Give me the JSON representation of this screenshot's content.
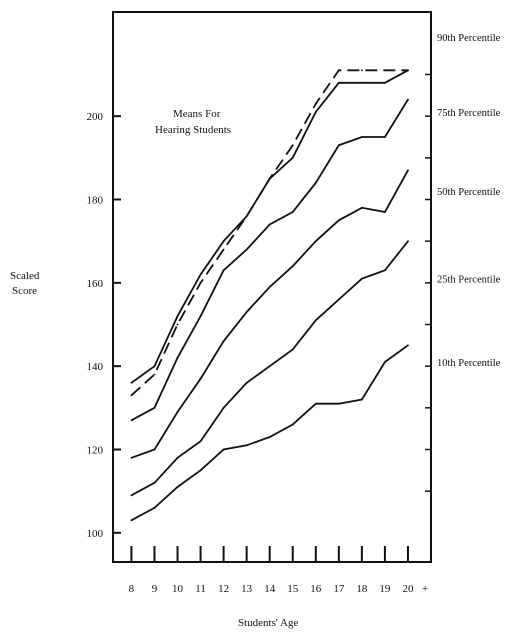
{
  "chart_data": {
    "type": "line",
    "xlabel": "Students' Age",
    "ylabel_line1": "Scaled",
    "ylabel_line2": "Score",
    "x_ticks": [
      "8",
      "9",
      "10",
      "11",
      "12",
      "13",
      "14",
      "15",
      "16",
      "17",
      "18",
      "19",
      "20"
    ],
    "x": [
      8,
      9,
      10,
      11,
      12,
      13,
      14,
      15,
      16,
      17,
      18,
      19,
      20
    ],
    "y_ticks": [
      100,
      120,
      140,
      160,
      180,
      200
    ],
    "y_tick_labels": [
      "100",
      "120",
      "140",
      "160",
      "180",
      "200"
    ],
    "ylim": [
      93,
      225
    ],
    "xlim": [
      7.2,
      21.0
    ],
    "grid": false,
    "annotation_line1": "Means For",
    "annotation_line2": "Hearing Students",
    "series": [
      {
        "name": "90th Percentile",
        "dashed": false,
        "values": [
          136,
          140,
          152,
          162,
          170,
          176,
          185,
          190,
          201,
          208,
          208,
          208,
          211
        ]
      },
      {
        "name": "75th Percentile",
        "dashed": false,
        "values": [
          127,
          130,
          142,
          152,
          163,
          168,
          174,
          177,
          184,
          193,
          195,
          195,
          204
        ]
      },
      {
        "name": "50th Percentile",
        "dashed": false,
        "values": [
          118,
          120,
          129,
          137,
          146,
          153,
          159,
          164,
          170,
          175,
          178,
          177,
          187
        ]
      },
      {
        "name": "25th Percentile",
        "dashed": false,
        "values": [
          109,
          112,
          118,
          122,
          130,
          136,
          140,
          144,
          151,
          156,
          161,
          163,
          170
        ]
      },
      {
        "name": "10th Percentile",
        "dashed": false,
        "values": [
          103,
          106,
          111,
          115,
          120,
          121,
          123,
          126,
          131,
          131,
          132,
          141,
          145
        ]
      },
      {
        "name": "",
        "dashed": true,
        "values": [
          133,
          138,
          150,
          160,
          168,
          176,
          185,
          193,
          203,
          211,
          211,
          211,
          211
        ]
      }
    ],
    "percentile_labels": [
      {
        "text": "90th Percentile",
        "y": 219
      },
      {
        "text": "75th Percentile",
        "y": 201
      },
      {
        "text": "50th Percentile",
        "y": 182
      },
      {
        "text": "25th Percentile",
        "y": 161
      },
      {
        "text": "10th Percentile",
        "y": 141
      }
    ],
    "x_axis_suffix": "+"
  }
}
